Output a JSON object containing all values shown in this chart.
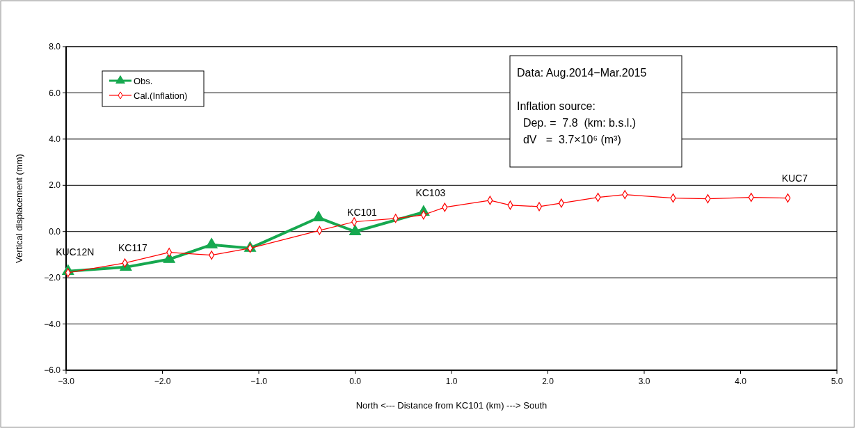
{
  "chart_data": {
    "type": "line",
    "xlabel": "North <--- Distance from KC101 (km) ---> South",
    "ylabel": "Vertical displacement (mm)",
    "xlim": [
      -3,
      5
    ],
    "ylim": [
      -6,
      8
    ],
    "xticks": [
      {
        "value": -3,
        "label": "−3.0"
      },
      {
        "value": -2,
        "label": "−2.0"
      },
      {
        "value": -1,
        "label": "−1.0"
      },
      {
        "value": 0,
        "label": "0.0"
      },
      {
        "value": 1,
        "label": "1.0"
      },
      {
        "value": 2,
        "label": "2.0"
      },
      {
        "value": 3,
        "label": "3.0"
      },
      {
        "value": 4,
        "label": "4.0"
      },
      {
        "value": 5,
        "label": "5.0"
      }
    ],
    "yticks": [
      {
        "value": -6,
        "label": "−6.0"
      },
      {
        "value": -4,
        "label": "−4.0"
      },
      {
        "value": -2,
        "label": "−2.0"
      },
      {
        "value": 0,
        "label": "0.0"
      },
      {
        "value": 2,
        "label": "2.0"
      },
      {
        "value": 4,
        "label": "4.0"
      },
      {
        "value": 6,
        "label": "6.0"
      },
      {
        "value": 8,
        "label": "8.0"
      }
    ],
    "grid": "y",
    "legend": "top left",
    "series": [
      {
        "name": "Obs.",
        "color": "#16a84f",
        "marker": "triangle",
        "x": [
          -2.98,
          -2.38,
          -1.93,
          -1.49,
          -1.09,
          -0.38,
          0.0,
          0.71
        ],
        "values": [
          -1.72,
          -1.54,
          -1.2,
          -0.57,
          -0.72,
          0.6,
          0.0,
          0.84
        ]
      },
      {
        "name": "Cal.(Inflation)",
        "color": "#ff0000",
        "marker": "diamond",
        "x": [
          -2.98,
          -2.39,
          -1.93,
          -1.49,
          -1.09,
          -0.37,
          -0.01,
          0.42,
          0.71,
          0.93,
          1.4,
          1.61,
          1.91,
          2.14,
          2.52,
          2.8,
          3.3,
          3.66,
          4.11,
          4.49
        ],
        "values": [
          -1.78,
          -1.36,
          -0.9,
          -1.02,
          -0.72,
          0.05,
          0.42,
          0.57,
          0.72,
          1.05,
          1.35,
          1.14,
          1.08,
          1.23,
          1.48,
          1.6,
          1.45,
          1.42,
          1.48,
          1.45
        ]
      }
    ],
    "annotations": [
      {
        "text": "KUC12N",
        "x": -2.98,
        "y": -1.72
      },
      {
        "text": "KC117",
        "x": -2.38,
        "y": -1.54
      },
      {
        "text": "KC101",
        "x": 0.0,
        "y": 0.0
      },
      {
        "text": "KC103",
        "x": 0.71,
        "y": 0.84
      },
      {
        "text": "KUC7",
        "x": 4.49,
        "y": 1.45
      },
      "Data: Aug.2014−Mar.2015",
      "Inflation source:",
      "  Dep. =  7.8  (km: b.s.l.)",
      "  dV   =  3.7×10⁶ (m³)"
    ]
  }
}
